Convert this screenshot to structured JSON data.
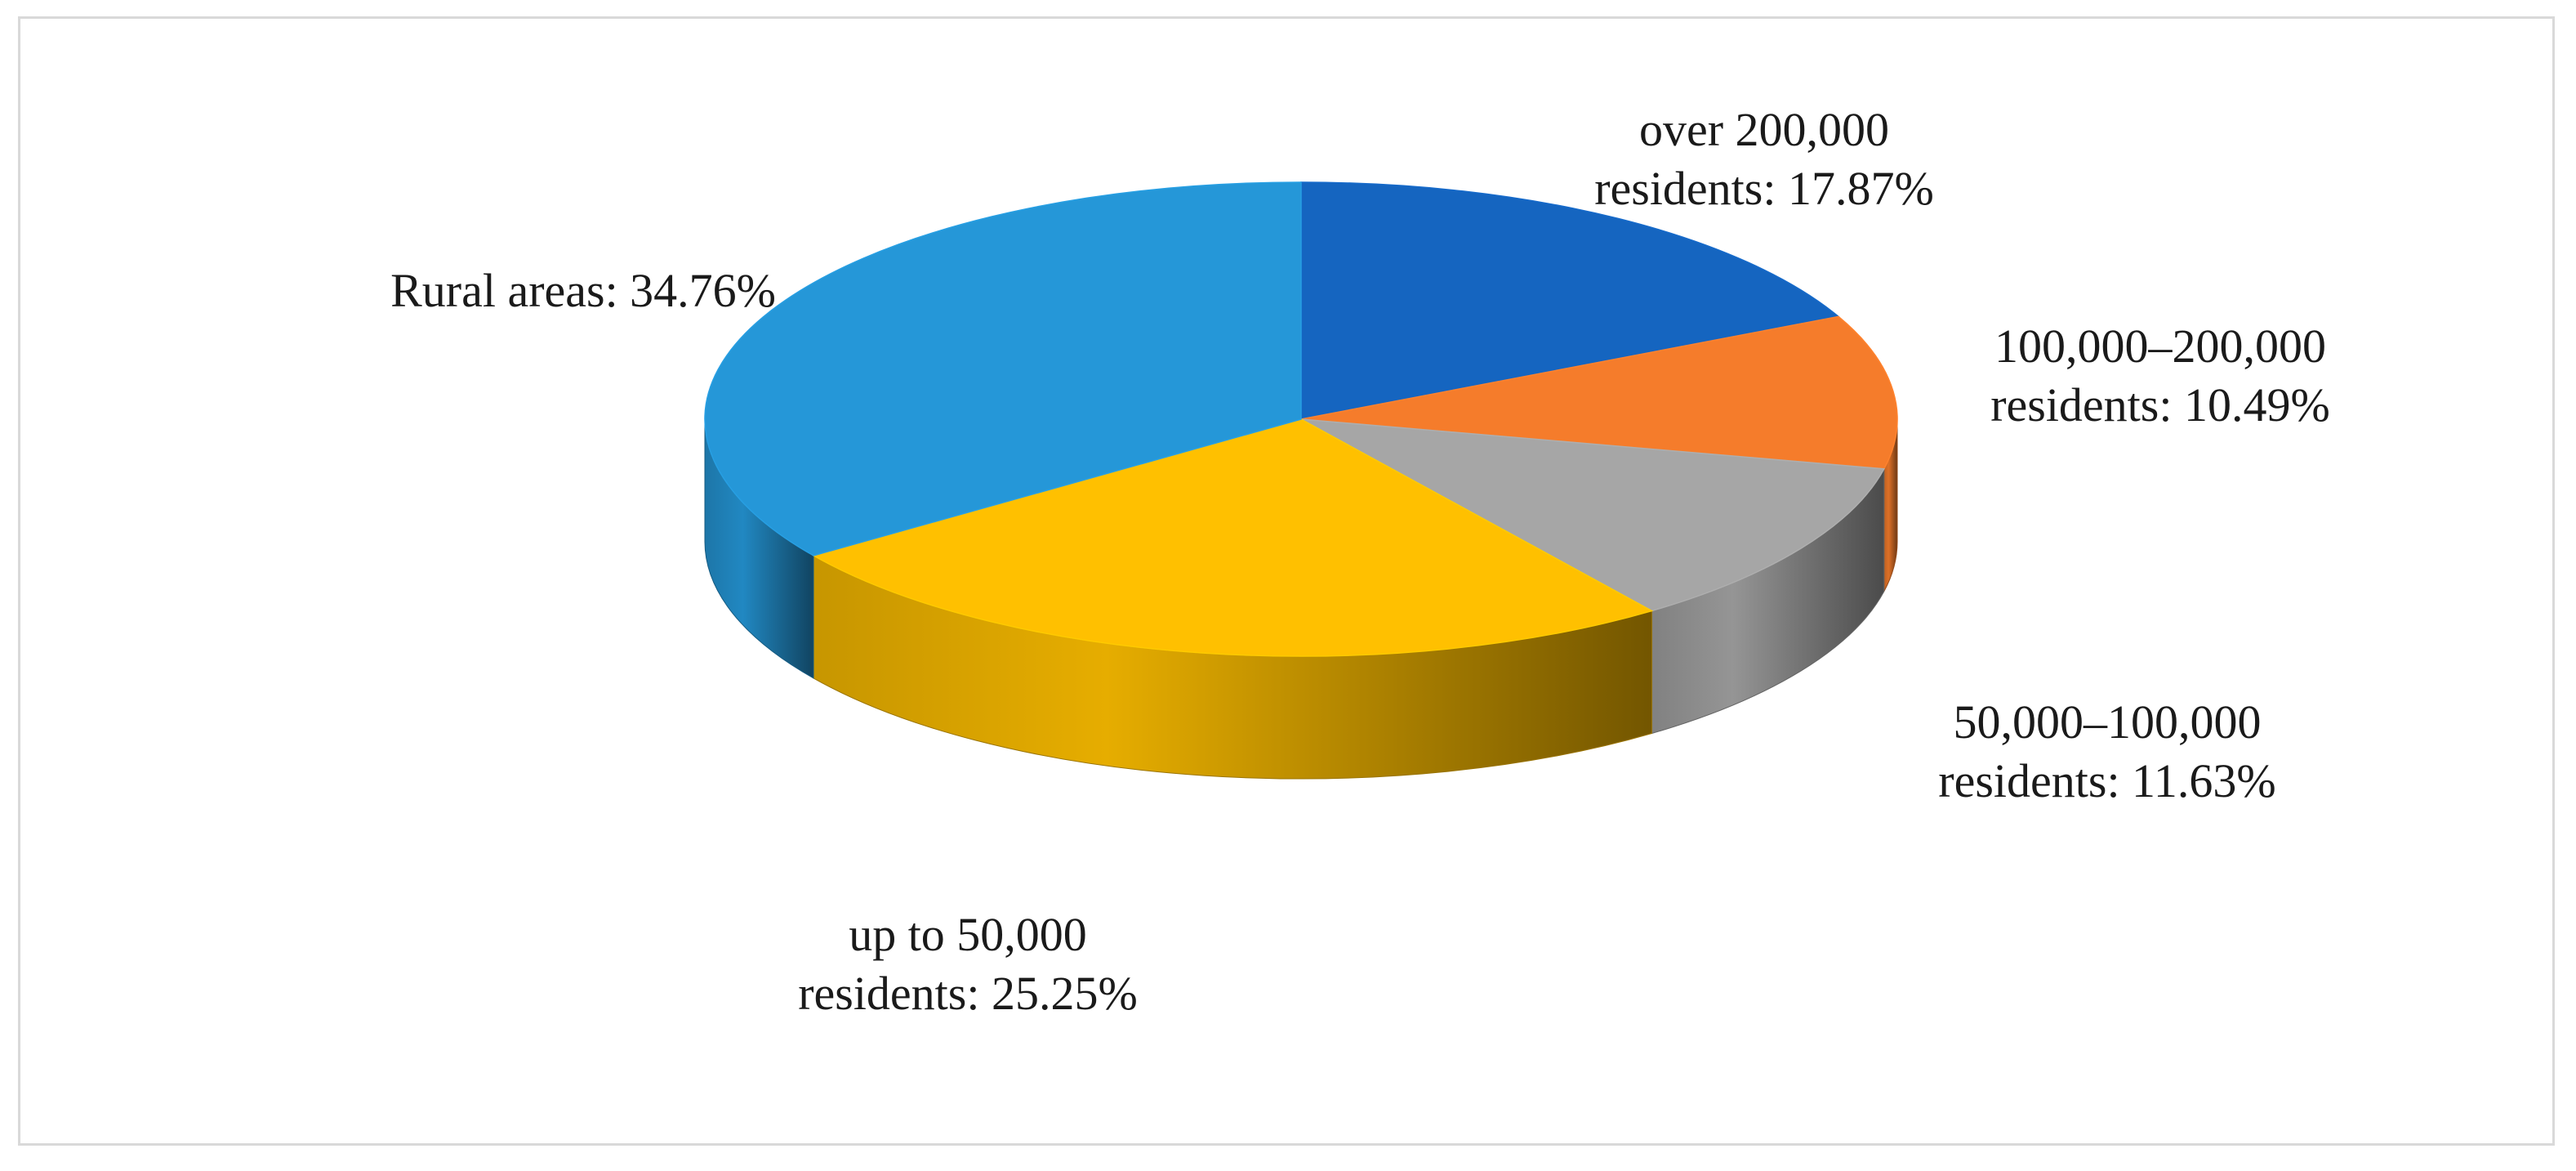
{
  "chart_data": {
    "type": "pie",
    "title": "",
    "three_d": true,
    "legend": "none",
    "slices": [
      {
        "name": "over 200,000 residents",
        "value": 17.87,
        "color": "#1565C0",
        "label_lines": [
          "over 200,000",
          "residents: 17.87%"
        ]
      },
      {
        "name": "100,000–200,000 residents",
        "value": 10.49,
        "color": "#F57C2B",
        "label_lines": [
          "100,000–200,000",
          "residents: 10.49%"
        ]
      },
      {
        "name": "50,000–100,000 residents",
        "value": 11.63,
        "color": "#A6A6A6",
        "label_lines": [
          "50,000–100,000",
          "residents: 11.63%"
        ]
      },
      {
        "name": "up to 50,000 residents",
        "value": 25.25,
        "color": "#FFC000",
        "label_lines": [
          "up to 50,000",
          "residents: 25.25%"
        ]
      },
      {
        "name": "Rural areas",
        "value": 34.76,
        "color": "#2597D8",
        "label_lines": [
          "Rural areas: 34.76%"
        ]
      }
    ]
  }
}
